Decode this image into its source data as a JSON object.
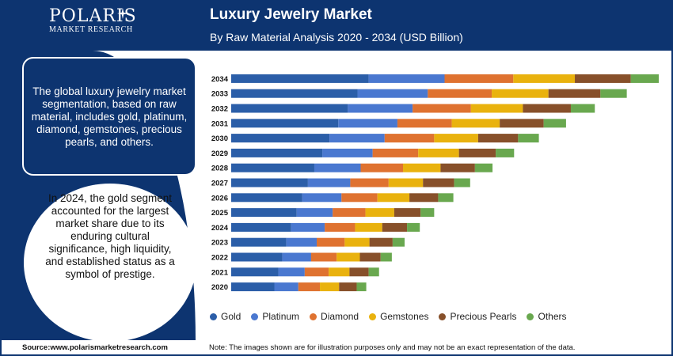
{
  "brand": {
    "name": "POLARIS",
    "tagline": "MARKET RESEARCH"
  },
  "title": "Luxury Jewelry Market",
  "subtitle": "By Raw Material Analysis 2020 - 2034 (USD Billion)",
  "panel": {
    "summary": "The global luxury jewelry market segmentation, based on raw material, includes gold, platinum, diamond, gemstones, precious pearls, and others.",
    "highlight": "In 2024, the gold segment accounted for the largest market share due to its enduring cultural significance, high liquidity, and established status as a symbol of prestige."
  },
  "footer": {
    "source": "Source:www.polarismarketresearch.com",
    "note": "Note: The images shown are for illustration purposes only and may not be an exact representation of the data."
  },
  "colors": {
    "brand_navy": "#0d3470"
  },
  "icons": {
    "logo": "star-icon"
  },
  "chart_data": {
    "type": "bar",
    "orientation": "horizontal",
    "stacked": true,
    "categories": [
      "2034",
      "2033",
      "2032",
      "2031",
      "2030",
      "2029",
      "2028",
      "2027",
      "2026",
      "2025",
      "2024",
      "2023",
      "2022",
      "2021",
      "2020"
    ],
    "series": [
      {
        "name": "Gold",
        "color": "#2b5ea8",
        "values": [
          17.2,
          15.8,
          14.6,
          13.4,
          12.3,
          11.4,
          10.4,
          9.6,
          8.9,
          8.2,
          7.5,
          6.9,
          6.4,
          5.9,
          5.4
        ]
      },
      {
        "name": "Platinum",
        "color": "#4a78d0",
        "values": [
          9.5,
          8.8,
          8.1,
          7.4,
          6.9,
          6.3,
          5.8,
          5.3,
          4.9,
          4.5,
          4.2,
          3.8,
          3.6,
          3.3,
          3.0
        ]
      },
      {
        "name": "Diamond",
        "color": "#df7230",
        "values": [
          8.6,
          8.0,
          7.3,
          6.8,
          6.2,
          5.7,
          5.3,
          4.8,
          4.5,
          4.1,
          3.8,
          3.5,
          3.2,
          3.0,
          2.7
        ]
      },
      {
        "name": "Gemstones",
        "color": "#e9b20e",
        "values": [
          7.7,
          7.1,
          6.5,
          6.0,
          5.5,
          5.1,
          4.7,
          4.3,
          4.0,
          3.6,
          3.4,
          3.1,
          2.9,
          2.6,
          2.4
        ]
      },
      {
        "name": "Precious Pearls",
        "color": "#87502a",
        "values": [
          7.0,
          6.5,
          6.0,
          5.5,
          5.0,
          4.6,
          4.3,
          3.9,
          3.6,
          3.3,
          3.1,
          2.9,
          2.6,
          2.4,
          2.2
        ]
      },
      {
        "name": "Others",
        "color": "#69a84f",
        "values": [
          3.5,
          3.3,
          3.0,
          2.8,
          2.6,
          2.3,
          2.2,
          2.0,
          1.9,
          1.7,
          1.6,
          1.5,
          1.4,
          1.3,
          1.2
        ]
      }
    ],
    "legend_position": "bottom",
    "grid": false
  }
}
